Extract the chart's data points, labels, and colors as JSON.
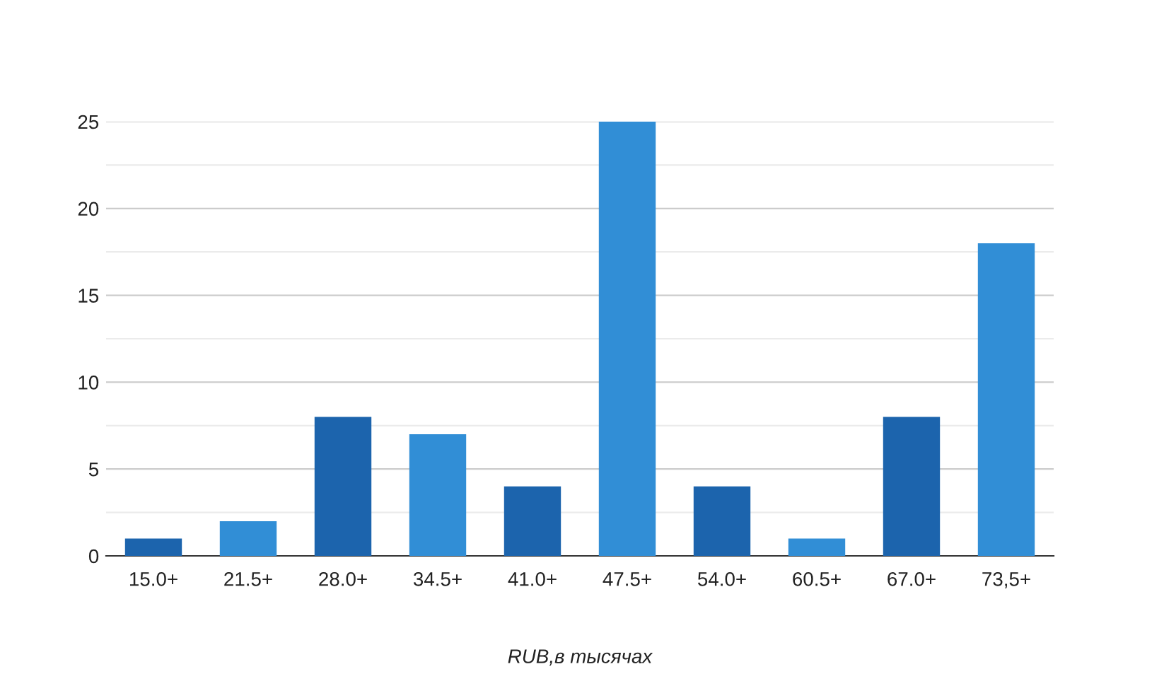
{
  "chart_data": {
    "type": "bar",
    "xlabel": "RUB,в тысячах",
    "categories": [
      "15.0+",
      "21.5+",
      "28.0+",
      "34.5+",
      "41.0+",
      "47.5+",
      "54.0+",
      "60.5+",
      "67.0+",
      "73,5+"
    ],
    "values": [
      1,
      2,
      8,
      7,
      4,
      25,
      4,
      1,
      8,
      18
    ],
    "colors": [
      "#1c64ad",
      "#318ed6",
      "#1c64ad",
      "#318ed6",
      "#1c64ad",
      "#318ed6",
      "#1c64ad",
      "#318ed6",
      "#1c64ad",
      "#318ed6"
    ],
    "ylim": [
      0,
      25
    ],
    "yticks": [
      0,
      {
        "value": 2.5,
        "label": null
      },
      5,
      {
        "value": 7.5,
        "label": null
      },
      10,
      {
        "value": 12.5,
        "label": null
      },
      15,
      {
        "value": 17.5,
        "label": null
      },
      20,
      {
        "value": 22.5,
        "label": null
      },
      25
    ],
    "grid": "y",
    "legend": false
  }
}
